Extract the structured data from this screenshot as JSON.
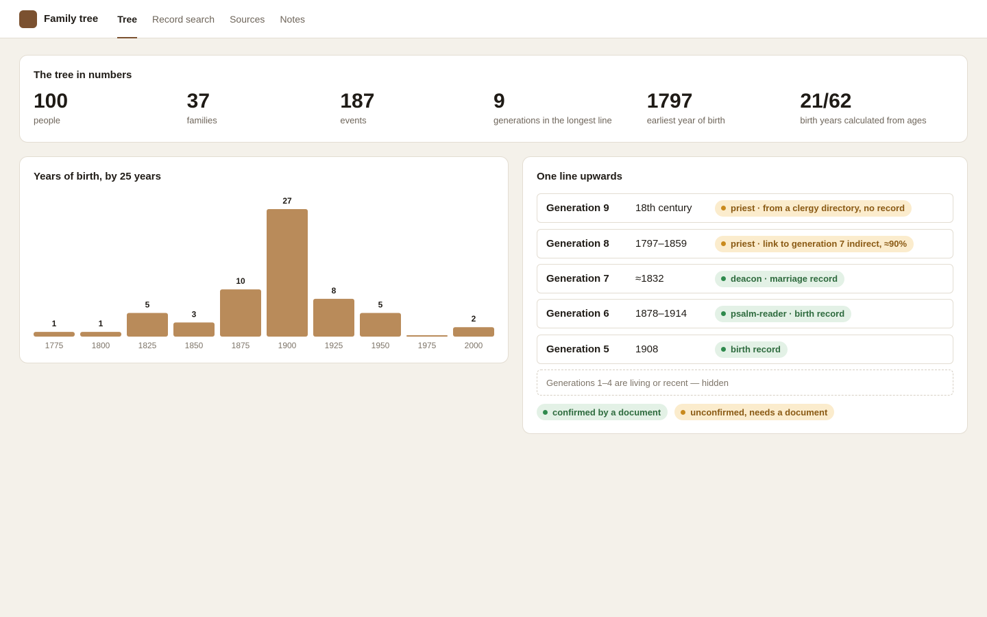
{
  "app": {
    "title": "Family tree"
  },
  "nav": {
    "tabs": [
      {
        "label": "Tree",
        "active": true
      },
      {
        "label": "Record search",
        "active": false
      },
      {
        "label": "Sources",
        "active": false
      },
      {
        "label": "Notes",
        "active": false
      }
    ]
  },
  "stats": {
    "title": "The tree in numbers",
    "items": [
      {
        "value": "100",
        "label": "people"
      },
      {
        "value": "37",
        "label": "families"
      },
      {
        "value": "187",
        "label": "events"
      },
      {
        "value": "9",
        "label": "generations in the longest line"
      },
      {
        "value": "1797",
        "label": "earliest year of birth"
      },
      {
        "value": "21/62",
        "label": "birth years calculated from ages"
      }
    ]
  },
  "chart_data": {
    "type": "bar",
    "title": "Years of birth, by 25 years",
    "categories": [
      "1775",
      "1800",
      "1825",
      "1850",
      "1875",
      "1900",
      "1925",
      "1950",
      "1975",
      "2000"
    ],
    "values": [
      1,
      1,
      5,
      3,
      10,
      27,
      8,
      5,
      null,
      2
    ],
    "ylim": [
      0,
      27
    ],
    "grid": false,
    "legend": "none",
    "bar_color": "#b98b5a"
  },
  "line": {
    "title": "One line upwards",
    "generations": [
      {
        "name": "Generation 9",
        "years": "18th century",
        "status": "unconfirmed",
        "note": "priest · from a clergy directory, no record"
      },
      {
        "name": "Generation 8",
        "years": "1797–1859",
        "status": "unconfirmed",
        "note": "priest · link to generation 7 indirect, ≈90%"
      },
      {
        "name": "Generation 7",
        "years": "≈1832",
        "status": "confirmed",
        "note": "deacon · marriage record"
      },
      {
        "name": "Generation 6",
        "years": "1878–1914",
        "status": "confirmed",
        "note": "psalm-reader · birth record"
      },
      {
        "name": "Generation 5",
        "years": "1908",
        "status": "confirmed",
        "note": "birth record"
      }
    ],
    "hidden_note": "Generations 1–4 are living or recent — hidden",
    "legend": {
      "confirmed": "confirmed by a document",
      "unconfirmed": "unconfirmed, needs a document"
    }
  },
  "colors": {
    "accent": "#7b5130",
    "bar": "#b98b5a",
    "confirmed": "#2f8a4d",
    "unconfirmed": "#c98a1d"
  }
}
